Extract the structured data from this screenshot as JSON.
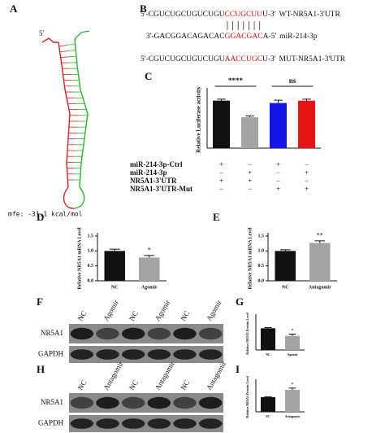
{
  "panel_labels": [
    "A",
    "B",
    "C",
    "D",
    "E",
    "F",
    "G",
    "H",
    "I"
  ],
  "structure": {
    "five_prime": "5′",
    "mfe": "mfe: -31.1 kcal/mol"
  },
  "sequences": [
    {
      "left": "5'-CGUCUGCUGUCUGU",
      "seed": "CCUGCUU",
      "right": "U-3'",
      "name": "WT-NR5A1-3'UTR"
    },
    {
      "left": "3'-GACGGACAGACAC",
      "seed": "GGACGAC",
      "right": "A-5'",
      "name": "miR-214-3p"
    },
    {
      "left": "5'-CGUCUGCUGUCUGU",
      "seed": "AACCUGC",
      "right": "U-3'",
      "name": "MUT-NR5A1-3'UTR"
    }
  ],
  "chart_data": [
    {
      "type": "bar",
      "ylabel": "Relative Luciferase activity",
      "categories": [
        null,
        null,
        null,
        null
      ],
      "values": [
        1.0,
        0.65,
        0.95,
        1.0
      ],
      "errors": [
        0.03,
        0.03,
        0.06,
        0.03
      ],
      "colors": [
        "#111111",
        "#a3a3a3",
        "#1414e6",
        "#e61414"
      ],
      "ylim": [
        0,
        1.2
      ],
      "comparisons": [
        "****",
        "ns"
      ],
      "conditions": [
        {
          "name": "miR-214-3p-Ctrl",
          "signs": [
            "+",
            "−",
            "+",
            "−"
          ]
        },
        {
          "name": "miR-214-3p",
          "signs": [
            "−",
            "+",
            "−",
            "+"
          ]
        },
        {
          "name": "NR5A1-3'UTR",
          "signs": [
            "+",
            "+",
            "−",
            "−"
          ]
        },
        {
          "name": "NR5A1-3'UTR-Mut",
          "signs": [
            "−",
            "−",
            "+",
            "+"
          ]
        }
      ]
    },
    {
      "type": "bar",
      "ylabel": "Relative NR5A1 mRNA Level",
      "categories": [
        "NC",
        "Agomir"
      ],
      "values": [
        1.0,
        0.78
      ],
      "errors": [
        0.06,
        0.07
      ],
      "colors": [
        "#111111",
        "#a3a3a3"
      ],
      "significance": [
        null,
        "*"
      ],
      "ylim": [
        0,
        1.5
      ],
      "yticks": [
        {
          "value": 0,
          "label": "0.0"
        },
        0.5,
        {
          "value": 1,
          "label": "1.0"
        },
        1.5
      ]
    },
    {
      "type": "bar",
      "ylabel": "Relative NR5A1 mRNA Level",
      "categories": [
        "NC",
        "Antagomir"
      ],
      "values": [
        1.0,
        1.27
      ],
      "errors": [
        0.04,
        0.07
      ],
      "colors": [
        "#111111",
        "#a3a3a3"
      ],
      "significance": [
        null,
        "**"
      ],
      "ylim": [
        0,
        1.5
      ],
      "yticks": [
        {
          "value": 0,
          "label": "0.0"
        },
        0.5,
        {
          "value": 1,
          "label": "1.0"
        },
        1.5
      ]
    },
    {
      "type": "bar",
      "ylabel": "Relative NR5A1 Protein Level",
      "categories": [
        "NC",
        "Agomir"
      ],
      "values": [
        1.0,
        0.65
      ],
      "errors": [
        0.03,
        0.08
      ],
      "colors": [
        "#111111",
        "#a3a3a3"
      ],
      "significance": [
        null,
        "*"
      ],
      "ylim": [
        0,
        1.5
      ]
    },
    {
      "type": "bar",
      "ylabel": "Relative NR5A1 Protein Level",
      "categories": [
        "NC",
        "Antagomir"
      ],
      "values": [
        1.0,
        1.5
      ],
      "errors": [
        0.02,
        0.12
      ],
      "colors": [
        "#111111",
        "#a3a3a3"
      ],
      "significance": [
        null,
        "*"
      ],
      "ylim": [
        0,
        2.0
      ]
    }
  ],
  "blots": [
    {
      "lanes": [
        "NC",
        "Agomir",
        "NC",
        "Agomir",
        "NC",
        "Agomir"
      ],
      "rows": [
        "NR5A1",
        "GAPDH"
      ]
    },
    {
      "lanes": [
        "NC",
        "Antagomir",
        "NC",
        "Antagomir",
        "NC",
        "Antagomir"
      ],
      "rows": [
        "NR5A1",
        "GAPDH"
      ]
    }
  ]
}
